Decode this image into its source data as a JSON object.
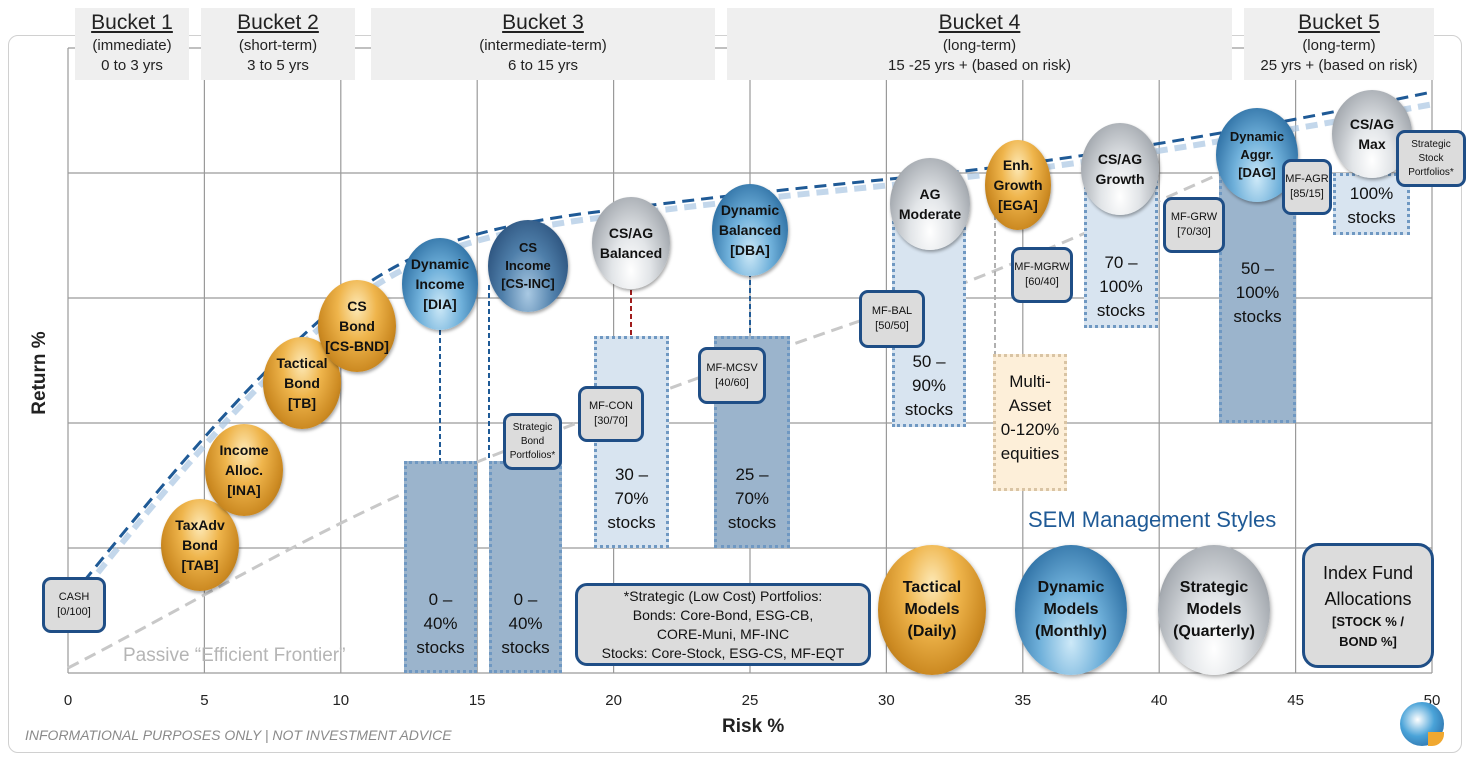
{
  "buckets": [
    {
      "title": "Bucket 1",
      "sub": "(immediate)",
      "range": "0 to 3 yrs"
    },
    {
      "title": "Bucket 2",
      "sub": "(short-term)",
      "range": "3 to 5 yrs"
    },
    {
      "title": "Bucket 3",
      "sub": "(intermediate-term)",
      "range": "6 to 15 yrs"
    },
    {
      "title": "Bucket 4",
      "sub": "(long-term)",
      "range": "15 -25 yrs + (based on risk)"
    },
    {
      "title": "Bucket 5",
      "sub": "(long-term)",
      "range": "25 yrs + (based on risk)"
    }
  ],
  "axes": {
    "x_label": "Risk %",
    "y_label": "Return %",
    "x_ticks": [
      "0",
      "5",
      "10",
      "15",
      "20",
      "25",
      "30",
      "35",
      "40",
      "45",
      "50"
    ]
  },
  "models": [
    {
      "lines": [
        "TaxAdv",
        "Bond",
        "[TAB]"
      ],
      "style": "orange"
    },
    {
      "lines": [
        "Income",
        "Alloc.",
        "[INA]"
      ],
      "style": "orange"
    },
    {
      "lines": [
        "Tactical",
        "Bond",
        "[TB]"
      ],
      "style": "orange"
    },
    {
      "lines": [
        "CS",
        "Bond",
        "[CS-BND]"
      ],
      "style": "orange"
    },
    {
      "lines": [
        "Dynamic",
        "Income",
        "[DIA]"
      ],
      "style": "blue"
    },
    {
      "lines": [
        "CS",
        "Income",
        "[CS-INC]"
      ],
      "style": "dblue"
    },
    {
      "lines": [
        "CS/AG",
        "Balanced"
      ],
      "style": "silver"
    },
    {
      "lines": [
        "Dynamic",
        "Balanced",
        "[DBA]"
      ],
      "style": "blue"
    },
    {
      "lines": [
        "AG",
        "Moderate"
      ],
      "style": "silver"
    },
    {
      "lines": [
        "Enh.",
        "Growth",
        "[EGA]"
      ],
      "style": "orange"
    },
    {
      "lines": [
        "CS/AG",
        "Growth"
      ],
      "style": "silver"
    },
    {
      "lines": [
        "Dynamic",
        "Aggr.",
        "[DAG]"
      ],
      "style": "blue"
    },
    {
      "lines": [
        "CS/AG",
        "Max"
      ],
      "style": "silver"
    }
  ],
  "ranges": [
    {
      "lines": [
        "0 –",
        "40%",
        "stocks"
      ],
      "style": "dark"
    },
    {
      "lines": [
        "0 –",
        "40%",
        "stocks"
      ],
      "style": "dark"
    },
    {
      "lines": [
        "30 – 70%",
        "stocks"
      ],
      "style": "light"
    },
    {
      "lines": [
        "25 –",
        "70%",
        "stocks"
      ],
      "style": "dark"
    },
    {
      "lines": [
        "50 –",
        "90%",
        "stocks"
      ],
      "style": "light"
    },
    {
      "lines": [
        "Multi-",
        "Asset",
        "0-120%",
        "equities"
      ],
      "style": "peach"
    },
    {
      "lines": [
        "70 –",
        "100%",
        "stocks"
      ],
      "style": "light"
    },
    {
      "lines": [
        "50 –",
        "100%",
        "stocks"
      ],
      "style": "dark"
    },
    {
      "lines": [
        "100%",
        "stocks"
      ],
      "style": "light"
    }
  ],
  "funds": [
    {
      "lines": [
        "CASH",
        "[0/100]"
      ]
    },
    {
      "lines": [
        "Strategic",
        "Bond",
        "Portfolios*"
      ]
    },
    {
      "lines": [
        "MF-CON",
        "[30/70]"
      ]
    },
    {
      "lines": [
        "MF-MCSV",
        "[40/60]"
      ]
    },
    {
      "lines": [
        "MF-BAL",
        "[50/50]"
      ]
    },
    {
      "lines": [
        "MF-MGRW",
        "[60/40]"
      ]
    },
    {
      "lines": [
        "MF-GRW",
        "[70/30]"
      ]
    },
    {
      "lines": [
        "MF-AGR",
        "[85/15]"
      ]
    },
    {
      "lines": [
        "Strategic",
        "Stock",
        "Portfolios*"
      ]
    }
  ],
  "frontier_label": "Passive “Efficient Frontier”",
  "footnote": {
    "lines": [
      "*Strategic (Low Cost) Portfolios:",
      "Bonds: Core-Bond, ESG-CB,",
      "CORE-Muni, MF-INC",
      "Stocks: Core-Stock, ESG-CS, MF-EQT"
    ]
  },
  "legend": {
    "title": "SEM Management Styles",
    "items": [
      {
        "lines": [
          "Tactical",
          "Models",
          "(Daily)"
        ],
        "style": "orange"
      },
      {
        "lines": [
          "Dynamic",
          "Models",
          "(Monthly)"
        ],
        "style": "blue"
      },
      {
        "lines": [
          "Strategic",
          "Models",
          "(Quarterly)"
        ],
        "style": "silver"
      }
    ],
    "index": {
      "lines": [
        "Index Fund",
        "Allocations",
        "[STOCK % /",
        "BOND %]"
      ]
    }
  },
  "disclaimer": "INFORMATIONAL PURPOSES ONLY | NOT INVESTMENT ADVICE",
  "colors": {
    "accent": "#1f4e86",
    "frontier": "#1f5a96",
    "passive": "#c8c8c8"
  }
}
